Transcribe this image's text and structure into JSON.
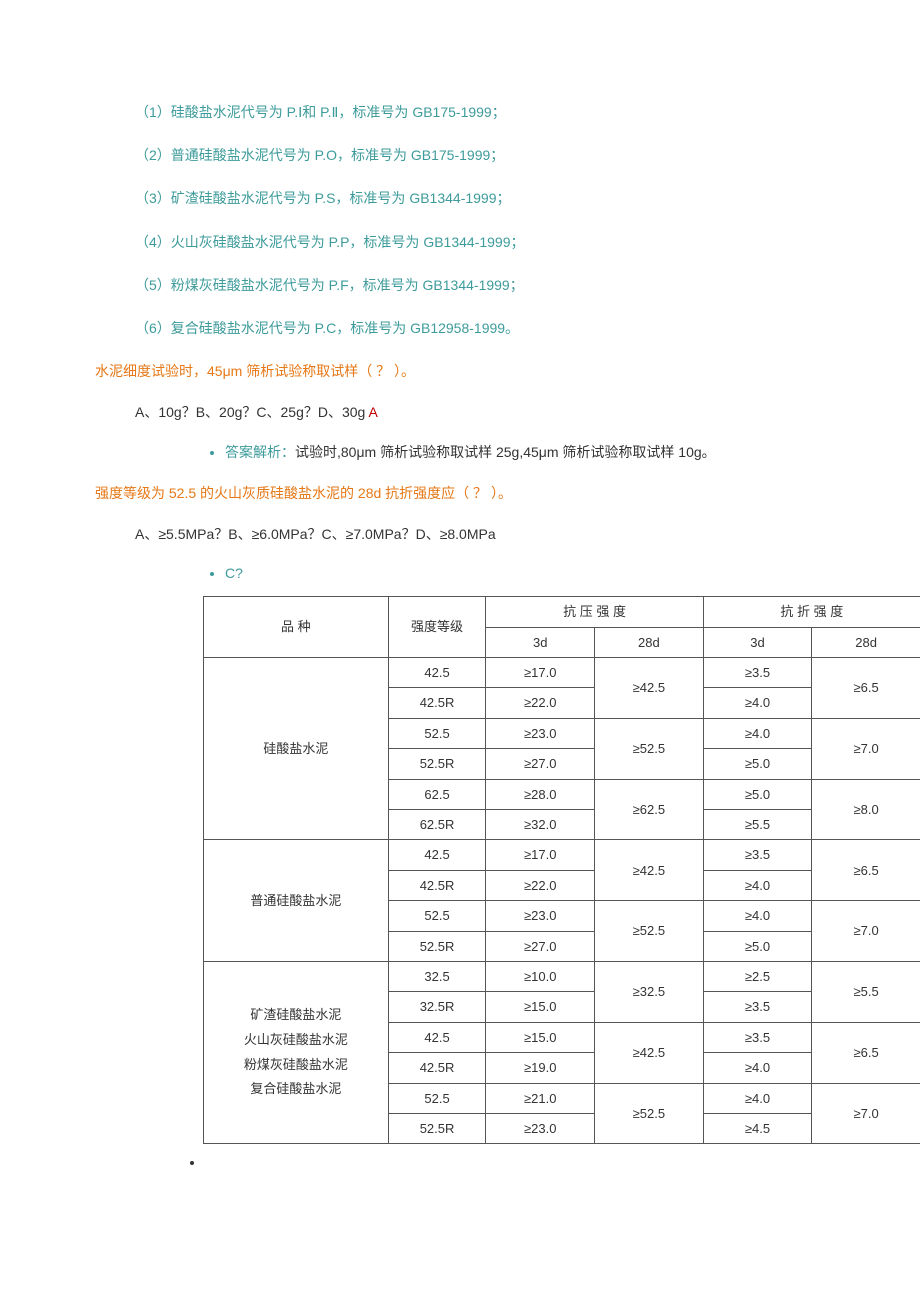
{
  "cement_types": [
    "（1）硅酸盐水泥代号为 P.Ⅰ和 P.Ⅱ，标准号为 GB175-1999；",
    "（2）普通硅酸盐水泥代号为 P.O，标准号为 GB175-1999；",
    "（3）矿渣硅酸盐水泥代号为 P.S，标准号为 GB1344-1999；",
    "（4）火山灰硅酸盐水泥代号为 P.P，标准号为 GB1344-1999；",
    "（5）粉煤灰硅酸盐水泥代号为 P.F，标准号为 GB1344-1999；",
    "（6）复合硅酸盐水泥代号为 P.C，标准号为 GB12958-1999。"
  ],
  "q1": {
    "text": "水泥细度试验时，45μm 筛析试验称取试样（ ？ ）。",
    "options": "A、10g？B、20g？C、25g？D、30g ",
    "answer_letter": "A",
    "explain_label": "答案解析：",
    "explain_text": "试验时,80μm 筛析试验称取试样 25g,45μm 筛析试验称取试样 10g。"
  },
  "q2": {
    "text": "强度等级为 52.5 的火山灰质硅酸盐水泥的 28d 抗折强度应（ ？ ）。",
    "options": "A、≥5.5MPa？B、≥6.0MPa？C、≥7.0MPa？D、≥8.0MPa",
    "answer": "C?"
  },
  "table": {
    "headers": {
      "variety": "品 种",
      "grade": "强度等级",
      "comp": "抗 压 强 度",
      "flex": "抗 折 强 度",
      "d3": "3d",
      "d28": "28d"
    },
    "groups": [
      {
        "name": "硅酸盐水泥",
        "rows": [
          {
            "grade": "42.5",
            "c3": "≥17.0",
            "c28": "≥42.5",
            "f3": "≥3.5",
            "f28": "≥6.5",
            "merge28": true
          },
          {
            "grade": "42.5R",
            "c3": "≥22.0",
            "c28": "",
            "f3": "≥4.0",
            "f28": ""
          },
          {
            "grade": "52.5",
            "c3": "≥23.0",
            "c28": "≥52.5",
            "f3": "≥4.0",
            "f28": "≥7.0",
            "merge28": true
          },
          {
            "grade": "52.5R",
            "c3": "≥27.0",
            "c28": "",
            "f3": "≥5.0",
            "f28": ""
          },
          {
            "grade": "62.5",
            "c3": "≥28.0",
            "c28": "≥62.5",
            "f3": "≥5.0",
            "f28": "≥8.0",
            "merge28": true
          },
          {
            "grade": "62.5R",
            "c3": "≥32.0",
            "c28": "",
            "f3": "≥5.5",
            "f28": ""
          }
        ]
      },
      {
        "name": "普通硅酸盐水泥",
        "rows": [
          {
            "grade": "42.5",
            "c3": "≥17.0",
            "c28": "≥42.5",
            "f3": "≥3.5",
            "f28": "≥6.5",
            "merge28": true
          },
          {
            "grade": "42.5R",
            "c3": "≥22.0",
            "c28": "",
            "f3": "≥4.0",
            "f28": ""
          },
          {
            "grade": "52.5",
            "c3": "≥23.0",
            "c28": "≥52.5",
            "f3": "≥4.0",
            "f28": "≥7.0",
            "merge28": true
          },
          {
            "grade": "52.5R",
            "c3": "≥27.0",
            "c28": "",
            "f3": "≥5.0",
            "f28": ""
          }
        ]
      },
      {
        "name_lines": [
          "矿渣硅酸盐水泥",
          "火山灰硅酸盐水泥",
          "粉煤灰硅酸盐水泥",
          "复合硅酸盐水泥"
        ],
        "rows": [
          {
            "grade": "32.5",
            "c3": "≥10.0",
            "c28": "≥32.5",
            "f3": "≥2.5",
            "f28": "≥5.5",
            "merge28": true
          },
          {
            "grade": "32.5R",
            "c3": "≥15.0",
            "c28": "",
            "f3": "≥3.5",
            "f28": ""
          },
          {
            "grade": "42.5",
            "c3": "≥15.0",
            "c28": "≥42.5",
            "f3": "≥3.5",
            "f28": "≥6.5",
            "merge28": true
          },
          {
            "grade": "42.5R",
            "c3": "≥19.0",
            "c28": "",
            "f3": "≥4.0",
            "f28": ""
          },
          {
            "grade": "52.5",
            "c3": "≥21.0",
            "c28": "≥52.5",
            "f3": "≥4.0",
            "f28": "≥7.0",
            "merge28": true
          },
          {
            "grade": "52.5R",
            "c3": "≥23.0",
            "c28": "",
            "f3": "≥4.5",
            "f28": ""
          }
        ]
      }
    ]
  }
}
